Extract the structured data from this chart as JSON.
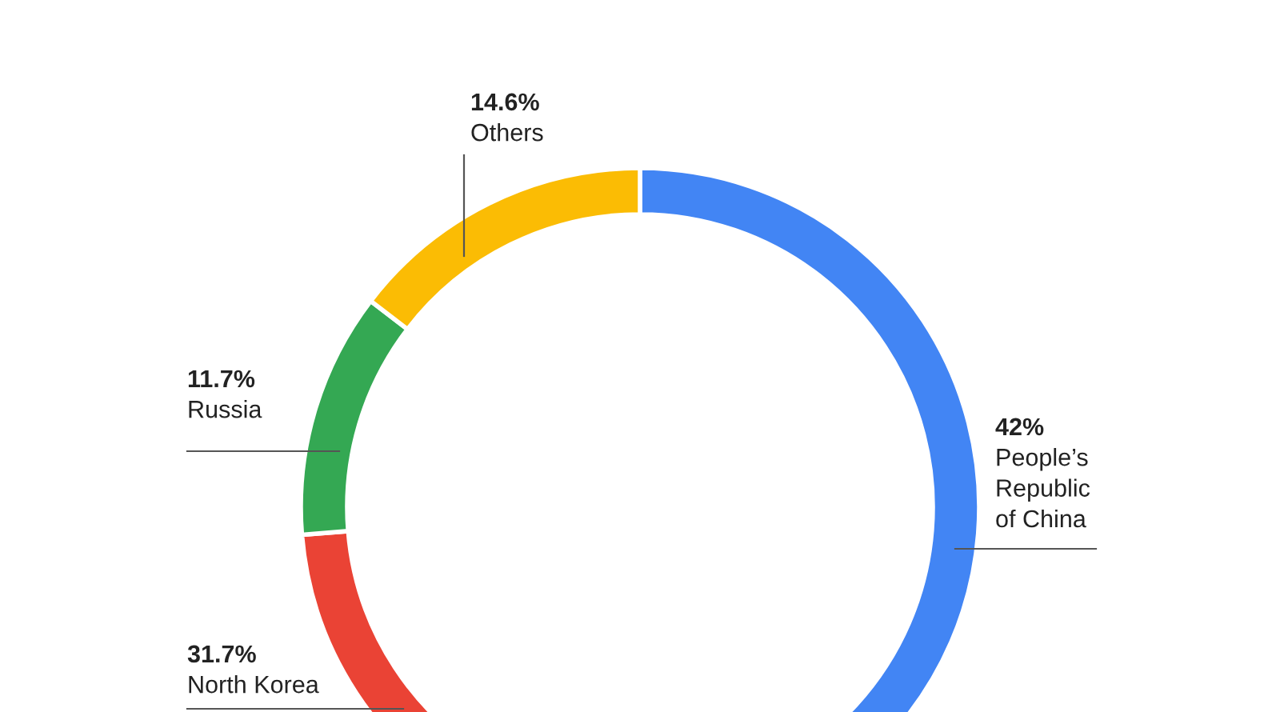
{
  "chart_data": {
    "type": "donut",
    "categories": [
      "People’s\nRepublic\nof China",
      "North Korea",
      "Russia",
      "Others"
    ],
    "values": [
      42,
      31.7,
      11.7,
      14.6
    ],
    "value_labels": [
      "42%",
      "31.7%",
      "11.7%",
      "14.6%"
    ],
    "colors": [
      "#4285f4",
      "#ea4335",
      "#34a853",
      "#fbbc04"
    ],
    "legend": false
  }
}
